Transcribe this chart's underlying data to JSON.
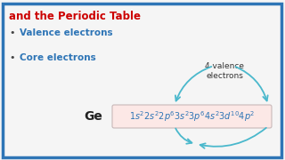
{
  "title_line1": "and the Periodic Table",
  "title_color": "#cc0000",
  "bullet1": "Valence electrons",
  "bullet2": "Core electrons",
  "bullet_color": "#2e75b6",
  "ge_label": "Ge",
  "ge_color": "#222222",
  "annotation": "4 valence\nelectrons",
  "annotation_color": "#333333",
  "border_color": "#2e75b6",
  "bg_color": "#f5f5f5",
  "arrow_color": "#4ab8cc",
  "formula_color": "#2e75b6",
  "formula_bg": "#fce8e8",
  "formula_border": "#d8d0d0"
}
